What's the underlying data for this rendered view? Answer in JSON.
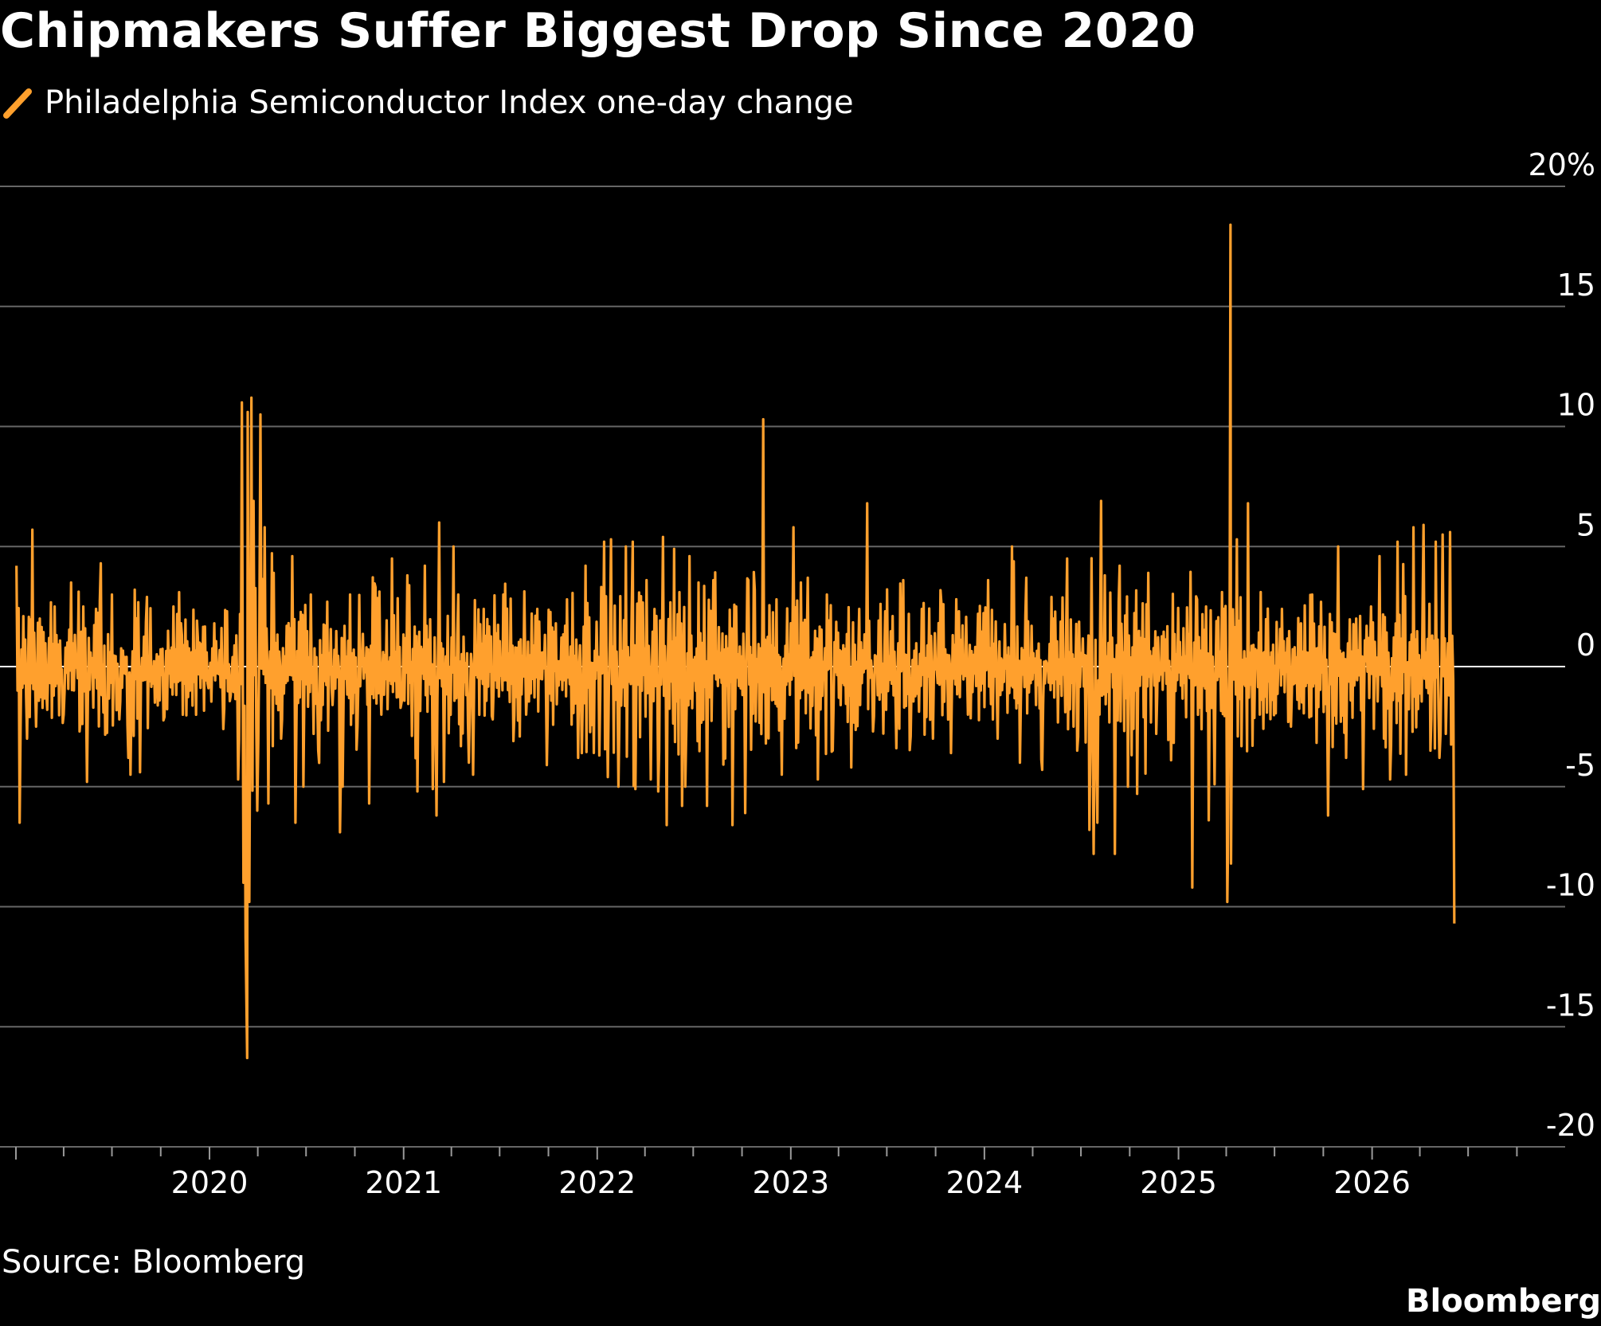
{
  "title": "Chipmakers Suffer Biggest Drop Since 2020",
  "source": "Source: Bloomberg",
  "brand": "Bloomberg",
  "colors": {
    "background": "#000000",
    "line": "#ffa02d",
    "grid": "#666666",
    "text": "#ffffff"
  },
  "chart_data": {
    "type": "line",
    "title": "Chipmakers Suffer Biggest Drop Since 2020",
    "xlabel": "",
    "ylabel": "",
    "xlim": [
      "2019-01-01",
      "2026-12-31"
    ],
    "ylim": [
      -20,
      20
    ],
    "grid": true,
    "legend_position": "top-left",
    "y_ticks": [
      20,
      15,
      10,
      5,
      0,
      -5,
      -10,
      -15,
      -20
    ],
    "y_tick_labels": [
      "20%",
      "15",
      "10",
      "5",
      "0",
      "-5",
      "-10",
      "-15",
      "-20"
    ],
    "x_ticks": [
      "2020",
      "2021",
      "2022",
      "2023",
      "2024",
      "2025",
      "2026"
    ],
    "series": [
      {
        "name": "Philadelphia Semiconductor Index one-day change",
        "color": "#ffa02d",
        "points": [
          [
            "2019-01-02",
            4.2
          ],
          [
            "2019-01-08",
            -6.5
          ],
          [
            "2019-01-15",
            2.1
          ],
          [
            "2019-01-22",
            -3.0
          ],
          [
            "2019-02-01",
            5.7
          ],
          [
            "2019-02-08",
            -2.5
          ],
          [
            "2019-02-15",
            2.0
          ],
          [
            "2019-03-01",
            -1.8
          ],
          [
            "2019-03-15",
            2.5
          ],
          [
            "2019-04-01",
            -2.0
          ],
          [
            "2019-04-15",
            3.5
          ],
          [
            "2019-05-01",
            -2.7
          ],
          [
            "2019-05-08",
            2.5
          ],
          [
            "2019-05-15",
            -4.8
          ],
          [
            "2019-06-01",
            2.4
          ],
          [
            "2019-06-10",
            4.3
          ],
          [
            "2019-06-20",
            -2.0
          ],
          [
            "2019-07-01",
            3.0
          ],
          [
            "2019-07-15",
            -2.2
          ],
          [
            "2019-08-01",
            -3.8
          ],
          [
            "2019-08-05",
            -4.5
          ],
          [
            "2019-08-13",
            3.2
          ],
          [
            "2019-08-23",
            -4.4
          ],
          [
            "2019-09-05",
            2.9
          ],
          [
            "2019-09-20",
            -1.5
          ],
          [
            "2019-10-08",
            -2.1
          ],
          [
            "2019-10-25",
            2.5
          ],
          [
            "2019-11-10",
            1.3
          ],
          [
            "2019-11-25",
            -1.0
          ],
          [
            "2019-12-10",
            1.2
          ],
          [
            "2019-12-30",
            -0.9
          ],
          [
            "2020-01-10",
            1.8
          ],
          [
            "2020-01-27",
            -2.6
          ],
          [
            "2020-02-03",
            2.3
          ],
          [
            "2020-02-10",
            -1.2
          ],
          [
            "2020-02-24",
            -4.7
          ],
          [
            "2020-03-02",
            11.0
          ],
          [
            "2020-03-05",
            -9.0
          ],
          [
            "2020-03-09",
            -11.3
          ],
          [
            "2020-03-12",
            -16.3
          ],
          [
            "2020-03-13",
            10.6
          ],
          [
            "2020-03-16",
            -9.8
          ],
          [
            "2020-03-20",
            11.2
          ],
          [
            "2020-03-24",
            6.9
          ],
          [
            "2020-03-31",
            -6.0
          ],
          [
            "2020-04-06",
            10.5
          ],
          [
            "2020-04-14",
            5.8
          ],
          [
            "2020-04-21",
            -5.7
          ],
          [
            "2020-05-01",
            3.9
          ],
          [
            "2020-05-15",
            -3.0
          ],
          [
            "2020-06-05",
            4.6
          ],
          [
            "2020-06-11",
            -6.5
          ],
          [
            "2020-06-26",
            -5.0
          ],
          [
            "2020-07-10",
            3.0
          ],
          [
            "2020-07-24",
            -3.5
          ],
          [
            "2020-08-10",
            2.7
          ],
          [
            "2020-08-20",
            -1.6
          ],
          [
            "2020-09-03",
            -6.9
          ],
          [
            "2020-09-08",
            -5.0
          ],
          [
            "2020-09-22",
            3.0
          ],
          [
            "2020-10-06",
            -2.5
          ],
          [
            "2020-10-28",
            -5.7
          ],
          [
            "2020-11-09",
            3.3
          ],
          [
            "2020-11-20",
            -2.0
          ],
          [
            "2020-12-10",
            4.5
          ],
          [
            "2020-12-28",
            -1.5
          ],
          [
            "2021-01-08",
            3.8
          ],
          [
            "2021-01-27",
            -5.2
          ],
          [
            "2021-02-10",
            4.2
          ],
          [
            "2021-02-25",
            -5.1
          ],
          [
            "2021-03-04",
            -6.2
          ],
          [
            "2021-03-09",
            6.0
          ],
          [
            "2021-03-18",
            -4.8
          ],
          [
            "2021-04-05",
            5.0
          ],
          [
            "2021-04-14",
            3.0
          ],
          [
            "2021-05-04",
            -4.0
          ],
          [
            "2021-05-12",
            -4.5
          ],
          [
            "2021-06-01",
            2.4
          ],
          [
            "2021-06-18",
            -2.2
          ],
          [
            "2021-07-08",
            3.0
          ],
          [
            "2021-07-27",
            -3.1
          ],
          [
            "2021-08-20",
            -2.0
          ],
          [
            "2021-09-10",
            2.4
          ],
          [
            "2021-09-28",
            -4.1
          ],
          [
            "2021-10-15",
            1.8
          ],
          [
            "2021-11-05",
            2.8
          ],
          [
            "2021-11-26",
            -3.8
          ],
          [
            "2021-12-03",
            -3.6
          ],
          [
            "2021-12-10",
            4.2
          ],
          [
            "2022-01-05",
            -3.7
          ],
          [
            "2022-01-14",
            5.2
          ],
          [
            "2022-01-21",
            -4.6
          ],
          [
            "2022-01-27",
            5.3
          ],
          [
            "2022-02-10",
            -5.0
          ],
          [
            "2022-02-24",
            5.0
          ],
          [
            "2022-03-09",
            5.2
          ],
          [
            "2022-03-14",
            -5.1
          ],
          [
            "2022-04-04",
            3.6
          ],
          [
            "2022-04-12",
            -4.7
          ],
          [
            "2022-04-26",
            -5.2
          ],
          [
            "2022-05-05",
            5.4
          ],
          [
            "2022-05-12",
            -6.6
          ],
          [
            "2022-05-26",
            4.9
          ],
          [
            "2022-06-10",
            -5.8
          ],
          [
            "2022-06-16",
            -5.0
          ],
          [
            "2022-06-24",
            4.6
          ],
          [
            "2022-07-11",
            3.5
          ],
          [
            "2022-07-27",
            -5.8
          ],
          [
            "2022-08-08",
            3.6
          ],
          [
            "2022-09-13",
            -6.6
          ],
          [
            "2022-09-20",
            2.5
          ],
          [
            "2022-10-07",
            -6.1
          ],
          [
            "2022-10-13",
            3.6
          ],
          [
            "2022-10-25",
            3.2
          ],
          [
            "2022-11-10",
            10.3
          ],
          [
            "2022-11-15",
            -3.2
          ],
          [
            "2022-12-05",
            2.8
          ],
          [
            "2022-12-15",
            -4.5
          ],
          [
            "2023-01-06",
            5.8
          ],
          [
            "2023-01-20",
            3.5
          ],
          [
            "2023-02-02",
            3.7
          ],
          [
            "2023-02-21",
            -4.7
          ],
          [
            "2023-03-10",
            3.0
          ],
          [
            "2023-03-21",
            -3.5
          ],
          [
            "2023-04-25",
            -4.2
          ],
          [
            "2023-05-10",
            2.4
          ],
          [
            "2023-05-25",
            6.8
          ],
          [
            "2023-06-05",
            -2.7
          ],
          [
            "2023-06-28",
            2.3
          ],
          [
            "2023-07-19",
            -3.4
          ],
          [
            "2023-08-01",
            3.6
          ],
          [
            "2023-08-15",
            -2.9
          ],
          [
            "2023-09-05",
            2.4
          ],
          [
            "2023-09-26",
            -3.0
          ],
          [
            "2023-10-12",
            2.6
          ],
          [
            "2023-10-30",
            -3.6
          ],
          [
            "2023-11-14",
            2.3
          ],
          [
            "2023-12-01",
            -2.0
          ],
          [
            "2023-12-20",
            2.2
          ],
          [
            "2024-01-08",
            3.6
          ],
          [
            "2024-01-26",
            -3.0
          ],
          [
            "2024-02-22",
            5.0
          ],
          [
            "2024-03-08",
            -4.0
          ],
          [
            "2024-03-20",
            3.7
          ],
          [
            "2024-04-19",
            -4.3
          ],
          [
            "2024-05-10",
            2.0
          ],
          [
            "2024-06-05",
            4.5
          ],
          [
            "2024-06-24",
            -3.5
          ],
          [
            "2024-07-17",
            -6.8
          ],
          [
            "2024-07-25",
            -7.8
          ],
          [
            "2024-08-01",
            -6.5
          ],
          [
            "2024-08-05",
            -2.0
          ],
          [
            "2024-08-08",
            6.9
          ],
          [
            "2024-08-15",
            3.8
          ],
          [
            "2024-09-03",
            -7.8
          ],
          [
            "2024-09-12",
            4.2
          ],
          [
            "2024-10-15",
            -5.3
          ],
          [
            "2024-11-05",
            3.9
          ],
          [
            "2024-11-20",
            -2.8
          ],
          [
            "2024-12-18",
            -3.9
          ],
          [
            "2025-01-27",
            -9.2
          ],
          [
            "2025-02-05",
            2.8
          ],
          [
            "2025-02-27",
            -6.4
          ],
          [
            "2025-03-10",
            -4.9
          ],
          [
            "2025-03-24",
            3.1
          ],
          [
            "2025-04-03",
            -9.8
          ],
          [
            "2025-04-04",
            -8.0
          ],
          [
            "2025-04-09",
            18.4
          ],
          [
            "2025-04-10",
            -8.2
          ],
          [
            "2025-04-21",
            5.3
          ],
          [
            "2025-05-12",
            6.8
          ],
          [
            "2025-06-05",
            3.1
          ],
          [
            "2025-07-15",
            2.4
          ],
          [
            "2025-08-01",
            -2.5
          ],
          [
            "2025-08-20",
            1.8
          ],
          [
            "2025-09-10",
            3.0
          ],
          [
            "2025-10-10",
            -6.2
          ],
          [
            "2025-10-29",
            5.0
          ],
          [
            "2025-11-13",
            -3.8
          ],
          [
            "2025-12-02",
            2.0
          ],
          [
            "2025-12-15",
            -5.1
          ],
          [
            "2025-12-30",
            2.5
          ],
          [
            "2026-01-15",
            4.6
          ],
          [
            "2026-02-04",
            -4.7
          ],
          [
            "2026-02-18",
            5.2
          ],
          [
            "2026-03-06",
            -4.5
          ],
          [
            "2026-03-20",
            5.8
          ],
          [
            "2026-04-08",
            5.9
          ],
          [
            "2026-04-21",
            -3.5
          ],
          [
            "2026-05-01",
            5.2
          ],
          [
            "2026-05-08",
            -3.8
          ],
          [
            "2026-05-14",
            5.5
          ],
          [
            "2026-05-20",
            -2.8
          ],
          [
            "2026-05-28",
            5.6
          ],
          [
            "2026-06-05",
            -10.7
          ]
        ]
      }
    ]
  }
}
